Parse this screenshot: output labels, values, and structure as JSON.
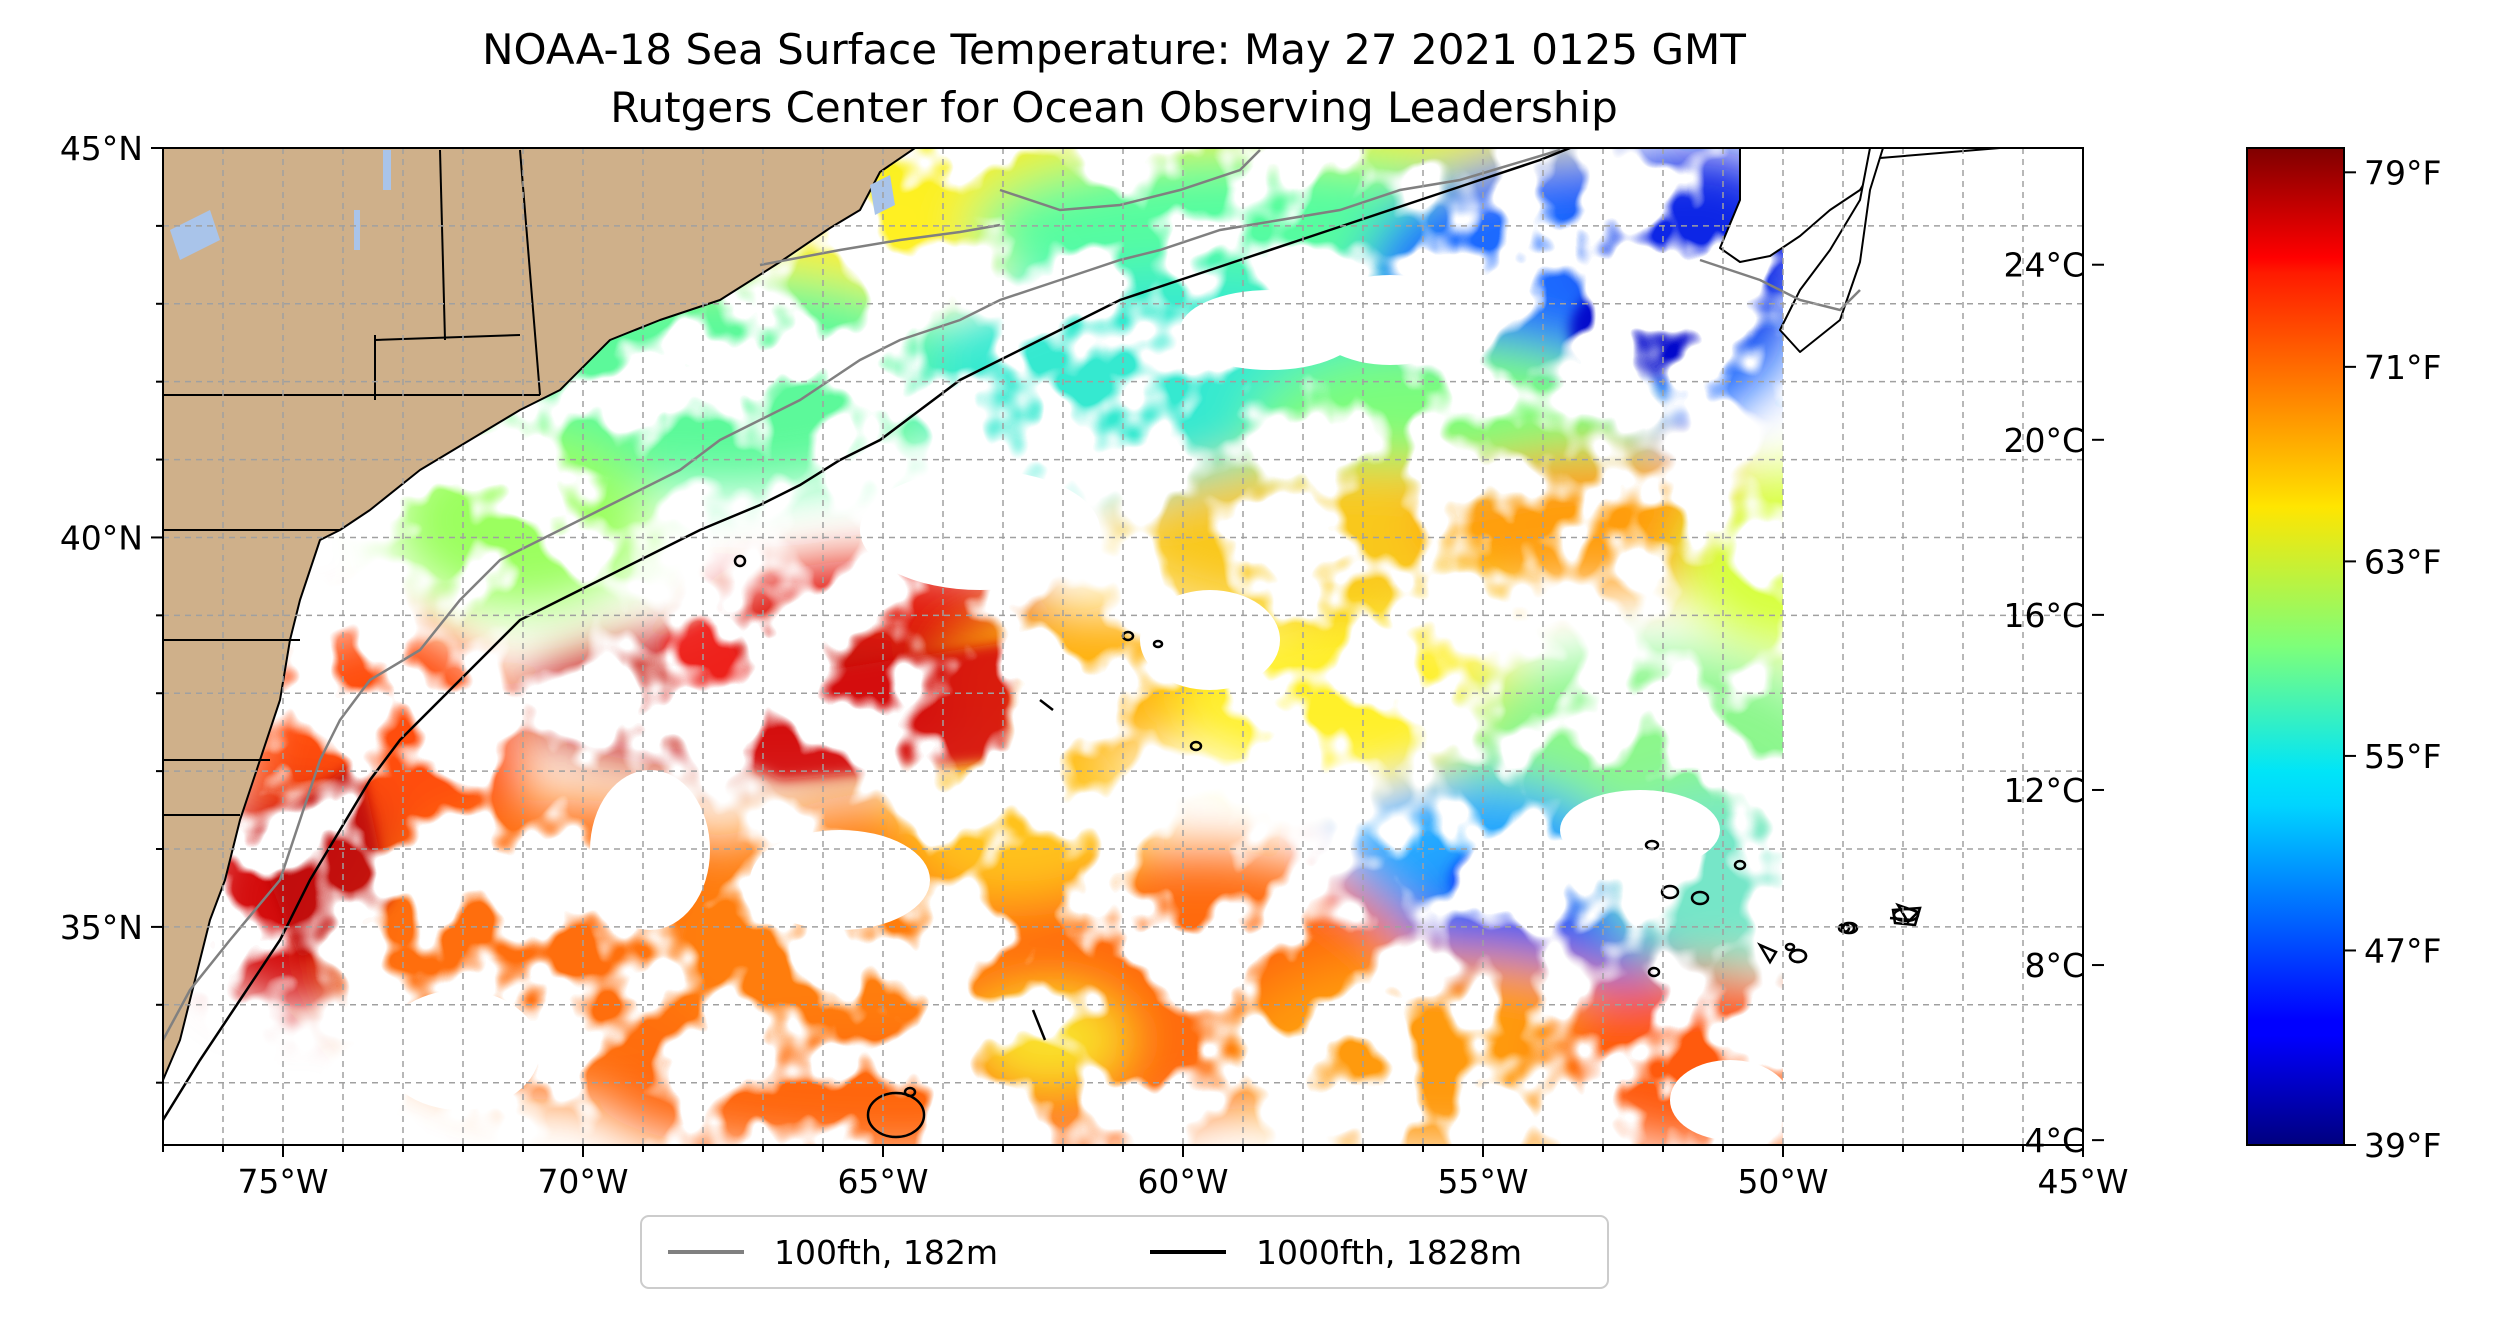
{
  "title": {
    "line1": "NOAA-18 Sea Surface Temperature: May 27 2021 0125 GMT",
    "line2": "Rutgers Center for Ocean Observing Leadership"
  },
  "map": {
    "lon_range": [
      -77,
      -45
    ],
    "lat_range": [
      32.2,
      45
    ],
    "lon_ticks": [
      {
        "value": -75,
        "label": "75°W"
      },
      {
        "value": -70,
        "label": "70°W"
      },
      {
        "value": -65,
        "label": "65°W"
      },
      {
        "value": -60,
        "label": "60°W"
      },
      {
        "value": -55,
        "label": "55°W"
      },
      {
        "value": -50,
        "label": "50°W"
      },
      {
        "value": -45,
        "label": "45°W"
      }
    ],
    "lat_ticks": [
      {
        "value": 45,
        "label": "45°N"
      },
      {
        "value": 40,
        "label": "40°N"
      },
      {
        "value": 35,
        "label": "35°N"
      }
    ],
    "grid": true,
    "land_color": "#cfb08a",
    "cloud_color": "#ffffff",
    "data_east_limit": -50
  },
  "colorbar": {
    "colormap": "jet",
    "range_f": [
      39,
      80
    ],
    "celsius_ticks": [
      {
        "value": 24,
        "label": "24°C"
      },
      {
        "value": 20,
        "label": "20°C"
      },
      {
        "value": 16,
        "label": "16°C"
      },
      {
        "value": 12,
        "label": "12°C"
      },
      {
        "value": 8,
        "label": "8°C"
      },
      {
        "value": 4,
        "label": "4°C"
      }
    ],
    "fahrenheit_ticks": [
      {
        "value": 79,
        "label": "79°F"
      },
      {
        "value": 71,
        "label": "71°F"
      },
      {
        "value": 63,
        "label": "63°F"
      },
      {
        "value": 55,
        "label": "55°F"
      },
      {
        "value": 47,
        "label": "47°F"
      },
      {
        "value": 39,
        "label": "39°F"
      }
    ]
  },
  "legend": {
    "placement": "bottom-center",
    "items": [
      {
        "label": "100fth, 182m",
        "color": "#808080"
      },
      {
        "label": "1000fth, 1828m",
        "color": "#000000"
      }
    ]
  }
}
